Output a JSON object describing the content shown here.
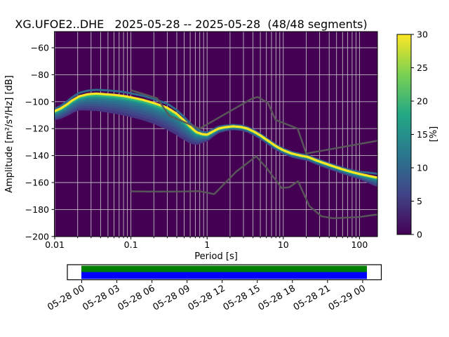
{
  "title": "XG.UFOE2..DHE   2025-05-28 -- 2025-05-28  (48/48 segments)",
  "axes": {
    "xlabel": "Period [s]",
    "ylabel": "Amplitude [m²/s⁴/Hz] [dB]",
    "xtick_values": [
      0.01,
      0.1,
      1,
      10,
      100
    ],
    "xtick_labels": [
      "0.01",
      "0.1",
      "1",
      "10",
      "100"
    ],
    "ytick_values": [
      -60,
      -80,
      -100,
      -120,
      -140,
      -160,
      -180,
      -200
    ],
    "ytick_labels": [
      "−60",
      "−80",
      "−100",
      "−120",
      "−140",
      "−160",
      "−180",
      "−200"
    ]
  },
  "colorbar": {
    "label": "[%]",
    "colormap": "viridis",
    "tick_values": [
      0,
      5,
      10,
      15,
      20,
      25,
      30
    ],
    "tick_labels": [
      "0",
      "5",
      "10",
      "15",
      "20",
      "25",
      "30"
    ]
  },
  "timeline": {
    "tick_labels": [
      "05-28 00",
      "05-28 03",
      "05-28 06",
      "05-28 09",
      "05-28 12",
      "05-28 15",
      "05-28 18",
      "05-28 21",
      "05-29 00"
    ],
    "coverage_top_color": "#008000",
    "coverage_bottom_color": "#0000ff"
  },
  "chart_data": {
    "type": "heatmap",
    "title": "XG.UFOE2..DHE   2025-05-28 -- 2025-05-28  (48/48 segments)",
    "xlabel": "Period [s]",
    "ylabel": "Amplitude [m²/s⁴/Hz] [dB]",
    "xscale": "log",
    "xlim": [
      0.01,
      172
    ],
    "ylim": [
      -200,
      -48
    ],
    "grid": true,
    "colorbar_label": "[%]",
    "colorbar_range": [
      0,
      30
    ],
    "mode_curve": [
      [
        0.01,
        -107
      ],
      [
        0.012,
        -105
      ],
      [
        0.0145,
        -102
      ],
      [
        0.017,
        -99
      ],
      [
        0.021,
        -96
      ],
      [
        0.027,
        -94.5
      ],
      [
        0.035,
        -94
      ],
      [
        0.046,
        -94.5
      ],
      [
        0.06,
        -95
      ],
      [
        0.08,
        -95.8
      ],
      [
        0.1,
        -96.8
      ],
      [
        0.14,
        -98.5
      ],
      [
        0.2,
        -101
      ],
      [
        0.3,
        -104.5
      ],
      [
        0.4,
        -109
      ],
      [
        0.5,
        -114
      ],
      [
        0.6,
        -118.5
      ],
      [
        0.72,
        -122.5
      ],
      [
        0.85,
        -124
      ],
      [
        1.0,
        -124.5
      ],
      [
        1.2,
        -122
      ],
      [
        1.4,
        -120
      ],
      [
        1.7,
        -119
      ],
      [
        2.2,
        -118.3
      ],
      [
        2.8,
        -118.8
      ],
      [
        3.4,
        -120
      ],
      [
        4.2,
        -122.5
      ],
      [
        5.0,
        -125
      ],
      [
        6.5,
        -129.5
      ],
      [
        8.0,
        -133
      ],
      [
        10,
        -136
      ],
      [
        13,
        -138.5
      ],
      [
        17,
        -140
      ],
      [
        21,
        -141
      ],
      [
        27,
        -143.5
      ],
      [
        34,
        -145.5
      ],
      [
        43,
        -147.5
      ],
      [
        55,
        -149.5
      ],
      [
        70,
        -151.3
      ],
      [
        90,
        -153
      ],
      [
        115,
        -154.3
      ],
      [
        145,
        -155.5
      ],
      [
        172,
        -156.3
      ]
    ],
    "spread_below": [
      [
        0.01,
        6
      ],
      [
        0.015,
        8
      ],
      [
        0.02,
        9.5
      ],
      [
        0.03,
        12
      ],
      [
        0.05,
        13
      ],
      [
        0.08,
        14
      ],
      [
        0.12,
        14.5
      ],
      [
        0.2,
        15
      ],
      [
        0.3,
        16
      ],
      [
        0.45,
        15
      ],
      [
        0.6,
        12
      ],
      [
        0.72,
        9
      ],
      [
        0.85,
        6
      ],
      [
        1.0,
        4
      ],
      [
        1.3,
        2.5
      ],
      [
        2,
        1.8
      ],
      [
        5,
        1.8
      ],
      [
        20,
        2
      ],
      [
        60,
        2.5
      ],
      [
        100,
        3
      ],
      [
        130,
        4.5
      ],
      [
        160,
        5.8
      ],
      [
        172,
        6
      ]
    ],
    "spread_above": [
      [
        0.01,
        1.5
      ],
      [
        0.02,
        2.5
      ],
      [
        0.05,
        3
      ],
      [
        0.1,
        3
      ],
      [
        0.2,
        3
      ],
      [
        0.3,
        3
      ],
      [
        0.5,
        2.5
      ],
      [
        0.72,
        2
      ],
      [
        1.0,
        1.5
      ],
      [
        2,
        1
      ],
      [
        10,
        1
      ],
      [
        60,
        1
      ],
      [
        100,
        1.5
      ],
      [
        140,
        2.5
      ],
      [
        172,
        2.8
      ]
    ],
    "noise_models": {
      "nhnm": [
        [
          0.1,
          -91.5
        ],
        [
          0.22,
          -97.4
        ],
        [
          0.32,
          -110.5
        ],
        [
          0.8,
          -120
        ],
        [
          3.8,
          -98
        ],
        [
          4.6,
          -96.5
        ],
        [
          6.3,
          -101
        ],
        [
          7.9,
          -113.5
        ],
        [
          15.4,
          -120
        ],
        [
          20,
          -138.5
        ],
        [
          172,
          -129
        ]
      ],
      "nlnm": [
        [
          0.1,
          -166.5
        ],
        [
          0.17,
          -166.7
        ],
        [
          0.4,
          -166.7
        ],
        [
          0.8,
          -166.4
        ],
        [
          1.24,
          -168.6
        ],
        [
          2.4,
          -152
        ],
        [
          4.4,
          -140.5
        ],
        [
          6.0,
          -149
        ],
        [
          9.5,
          -164
        ],
        [
          12,
          -163.5
        ],
        [
          15.6,
          -159
        ],
        [
          22,
          -177.5
        ],
        [
          31.6,
          -185
        ],
        [
          45,
          -186.5
        ],
        [
          70,
          -186
        ],
        [
          101,
          -185.5
        ],
        [
          154,
          -184
        ],
        [
          172,
          -183.8
        ]
      ]
    },
    "colors": {
      "background": "#440154",
      "mode_line": "#fde725",
      "noise_model_line": "#5a5a5a",
      "grid_line": "#cccccc",
      "above_layer": {
        "color": "#31688e",
        "width": 3
      },
      "band_layers": [
        {
          "frac": 0.95,
          "color": "#453781",
          "width": 4.5
        },
        {
          "frac": 0.8,
          "color": "#404688",
          "width": 4.5
        },
        {
          "frac": 0.65,
          "color": "#39568c",
          "width": 4.5
        },
        {
          "frac": 0.52,
          "color": "#33638d",
          "width": 4
        },
        {
          "frac": 0.4,
          "color": "#2d708e",
          "width": 4
        },
        {
          "frac": 0.28,
          "color": "#287d8e",
          "width": 4
        },
        {
          "frac": 0.18,
          "color": "#1f968b",
          "width": 3.5
        },
        {
          "frac": 0.09,
          "color": "#35b779",
          "width": 3.5
        }
      ],
      "viridis_stops": [
        "#440154",
        "#414487",
        "#2a788e",
        "#22a884",
        "#7ad151",
        "#fde725"
      ]
    }
  }
}
